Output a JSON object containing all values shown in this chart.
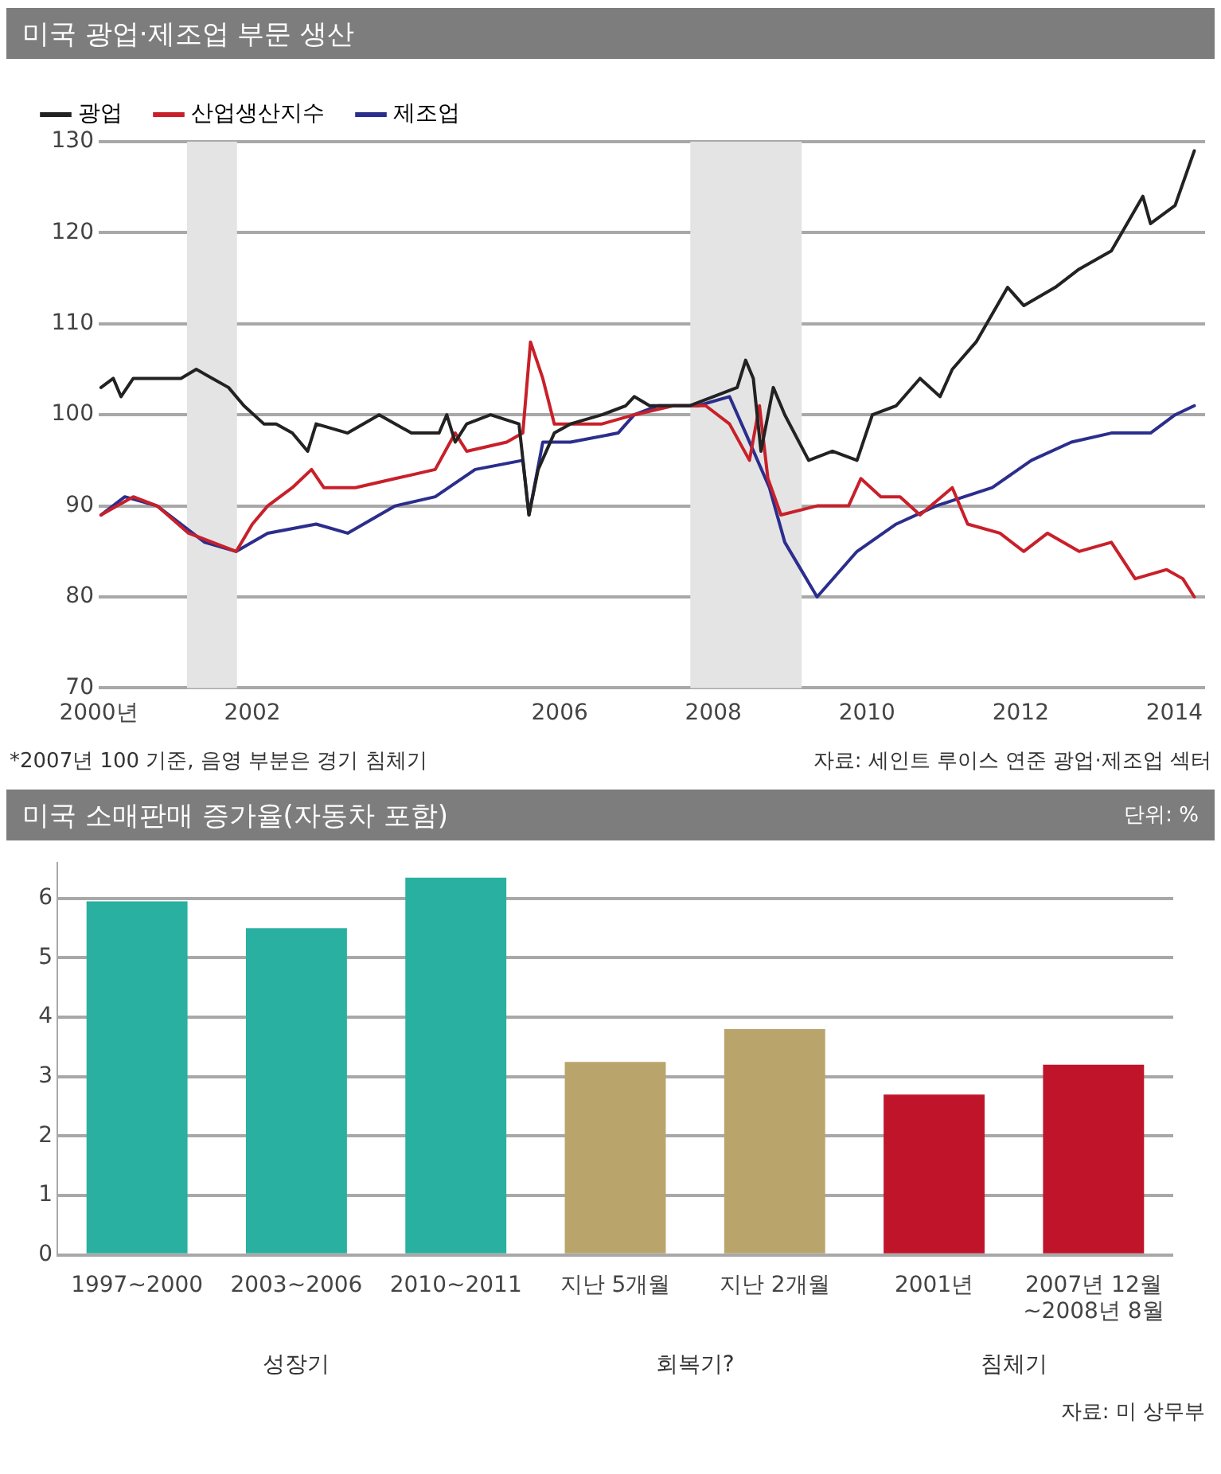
{
  "chart_data": [
    {
      "type": "line",
      "title": "미국 광업·제조업 부문 생산",
      "legend": "top left",
      "grid": "y",
      "marker": "none",
      "line_style": "solid",
      "xlim": [
        2000,
        2014.4
      ],
      "xticks": [
        {
          "value": 2000,
          "label": "2000년"
        },
        2002,
        2006,
        2008,
        2010,
        2012,
        2014
      ],
      "ylim": [
        70,
        130
      ],
      "yticks": [
        70,
        80,
        90,
        100,
        110,
        120,
        130
      ],
      "bands": [
        {
          "axis": "x",
          "from": 2001.15,
          "to": 2001.8,
          "color": "#e4e4e4"
        },
        {
          "axis": "x",
          "from": 2007.7,
          "to": 2009.15,
          "color": "#e4e4e4"
        }
      ],
      "series": [
        {
          "name": "광업",
          "color": "#222222",
          "x": [
            2000.03,
            2000.19,
            2000.29,
            2000.45,
            2000.96,
            2001.07,
            2001.27,
            2001.48,
            2001.69,
            2001.89,
            2002.15,
            2002.31,
            2002.52,
            2002.72,
            2002.83,
            2003.24,
            2003.65,
            2004.07,
            2004.43,
            2004.53,
            2004.64,
            2004.79,
            2005.1,
            2005.47,
            2005.6,
            2005.72,
            2005.93,
            2006.14,
            2006.55,
            2006.86,
            2006.97,
            2007.17,
            2007.69,
            2008.0,
            2008.31,
            2008.42,
            2008.52,
            2008.62,
            2008.78,
            2008.93,
            2009.24,
            2009.55,
            2009.87,
            2010.07,
            2010.38,
            2010.69,
            2010.95,
            2011.11,
            2011.42,
            2011.83,
            2012.04,
            2012.45,
            2012.76,
            2013.18,
            2013.59,
            2013.69,
            2014.01,
            2014.26
          ],
          "values": [
            103,
            104,
            102,
            104,
            104,
            104,
            105,
            104,
            103,
            101,
            99,
            99,
            98,
            96,
            99,
            98,
            100,
            98,
            98,
            100,
            97,
            99,
            100,
            99,
            89,
            94,
            98,
            99,
            100,
            101,
            102,
            101,
            101,
            102,
            103,
            106,
            104,
            96,
            103,
            100,
            95,
            96,
            95,
            100,
            101,
            104,
            102,
            105,
            108,
            114,
            112,
            114,
            116,
            118,
            124,
            121,
            123,
            129
          ]
        },
        {
          "name": "산업생산지수",
          "color": "#c8202a",
          "x": [
            2000.03,
            2000.24,
            2000.45,
            2000.76,
            2001.17,
            2001.48,
            2001.79,
            2002.0,
            2002.2,
            2002.52,
            2002.77,
            2002.93,
            2003.34,
            2003.86,
            2004.38,
            2004.64,
            2004.79,
            2005.31,
            2005.52,
            2005.62,
            2005.78,
            2005.93,
            2006.14,
            2006.55,
            2006.97,
            2007.48,
            2007.9,
            2008.21,
            2008.47,
            2008.6,
            2008.71,
            2008.88,
            2009.35,
            2009.76,
            2009.92,
            2010.18,
            2010.43,
            2010.69,
            2011.11,
            2011.31,
            2011.73,
            2012.04,
            2012.35,
            2012.76,
            2013.18,
            2013.49,
            2013.9,
            2014.11,
            2014.26
          ],
          "values": [
            89,
            90,
            91,
            90,
            87,
            86,
            85,
            88,
            90,
            92,
            94,
            92,
            92,
            93,
            94,
            98,
            96,
            97,
            98,
            108,
            104,
            99,
            99,
            99,
            100,
            101,
            101,
            99,
            95,
            101,
            93,
            89,
            90,
            90,
            93,
            91,
            91,
            89,
            92,
            88,
            87,
            85,
            87,
            85,
            86,
            82,
            83,
            82,
            80
          ]
        },
        {
          "name": "제조업",
          "color": "#2b2e8c",
          "x": [
            2000.03,
            2000.34,
            2000.76,
            2001.38,
            2001.79,
            2002.2,
            2002.83,
            2003.24,
            2003.86,
            2004.38,
            2004.9,
            2005.52,
            2005.6,
            2005.78,
            2006.14,
            2006.76,
            2006.97,
            2007.28,
            2007.8,
            2008.21,
            2008.42,
            2008.73,
            2008.93,
            2009.35,
            2009.87,
            2010.38,
            2010.9,
            2011.63,
            2012.14,
            2012.66,
            2013.18,
            2013.69,
            2014.01,
            2014.26
          ],
          "values": [
            89,
            91,
            90,
            86,
            85,
            87,
            88,
            87,
            90,
            91,
            94,
            95,
            89,
            97,
            97,
            98,
            100,
            101,
            101,
            102,
            98,
            92,
            86,
            80,
            85,
            88,
            90,
            92,
            95,
            97,
            98,
            98,
            100,
            101
          ]
        }
      ],
      "annotations": [
        "*2007년 100 기준, 음영 부분은 경기 침체기",
        "자료: 세인트 루이스 연준 광업·제조업 섹터"
      ]
    },
    {
      "type": "bar",
      "title": "미국 소매판매 증가율(자동차 포함)",
      "subtitle": "단위: %",
      "legend": false,
      "grid": "y",
      "categories": [
        "1997~2000",
        "2003~2006",
        "2010~2011",
        "지난 5개월",
        "지난 2개월",
        "2001년",
        "2007년 12월\n~2008년 8월"
      ],
      "values": [
        5.95,
        5.5,
        6.35,
        3.25,
        3.8,
        2.7,
        3.2
      ],
      "colors": [
        "#2ab0a0",
        "#2ab0a0",
        "#2ab0a0",
        "#b9a56c",
        "#b9a56c",
        "#c0142a",
        "#c0142a"
      ],
      "ylim": [
        0,
        6.6
      ],
      "yticks": [
        0,
        1,
        2,
        3,
        4,
        5,
        6
      ],
      "annotations": [
        "성장기",
        "회복기?",
        "침체기",
        "자료: 미 상무부"
      ]
    }
  ]
}
